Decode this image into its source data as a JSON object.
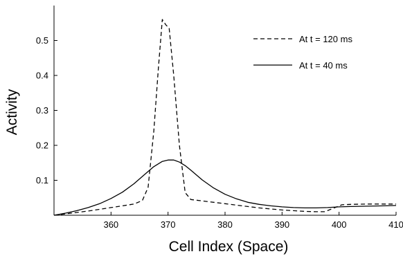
{
  "chart_data": {
    "type": "line",
    "title": "",
    "xlabel": "Cell Index (Space)",
    "ylabel": "Activity",
    "xlim": [
      350,
      410
    ],
    "ylim": [
      0,
      0.6
    ],
    "xticks": [
      360,
      370,
      380,
      390,
      400,
      410
    ],
    "yticks": [
      0.1,
      0.2,
      0.3,
      0.4,
      0.5
    ],
    "grid": false,
    "legend_position": "top-right",
    "series": [
      {
        "name": "At t = 120 ms",
        "style": "dashed",
        "color": "#000000",
        "points": [
          [
            350,
            0.0
          ],
          [
            352,
            0.004
          ],
          [
            354,
            0.008
          ],
          [
            356,
            0.012
          ],
          [
            358,
            0.017
          ],
          [
            360,
            0.022
          ],
          [
            362,
            0.027
          ],
          [
            364,
            0.032
          ],
          [
            365.5,
            0.042
          ],
          [
            366.5,
            0.08
          ],
          [
            367.5,
            0.24
          ],
          [
            368.3,
            0.42
          ],
          [
            369,
            0.56
          ],
          [
            369.6,
            0.545
          ],
          [
            370.2,
            0.535
          ],
          [
            371,
            0.4
          ],
          [
            372,
            0.2
          ],
          [
            373,
            0.065
          ],
          [
            374,
            0.045
          ],
          [
            376,
            0.041
          ],
          [
            378,
            0.037
          ],
          [
            380,
            0.033
          ],
          [
            382,
            0.029
          ],
          [
            384,
            0.025
          ],
          [
            386,
            0.021
          ],
          [
            388,
            0.018
          ],
          [
            390,
            0.015
          ],
          [
            392,
            0.013
          ],
          [
            394,
            0.011
          ],
          [
            396,
            0.01
          ],
          [
            397.5,
            0.01
          ],
          [
            399,
            0.02
          ],
          [
            400.5,
            0.03
          ],
          [
            402,
            0.031
          ],
          [
            405,
            0.032
          ],
          [
            408,
            0.032
          ],
          [
            410,
            0.032
          ]
        ]
      },
      {
        "name": "At t = 40 ms",
        "style": "solid",
        "color": "#000000",
        "points": [
          [
            350,
            0.0
          ],
          [
            352,
            0.006
          ],
          [
            354,
            0.013
          ],
          [
            356,
            0.022
          ],
          [
            358,
            0.033
          ],
          [
            360,
            0.048
          ],
          [
            362,
            0.066
          ],
          [
            364,
            0.09
          ],
          [
            366,
            0.118
          ],
          [
            367.5,
            0.139
          ],
          [
            369,
            0.154
          ],
          [
            370,
            0.158
          ],
          [
            371,
            0.158
          ],
          [
            372,
            0.152
          ],
          [
            373,
            0.142
          ],
          [
            374,
            0.129
          ],
          [
            376,
            0.101
          ],
          [
            378,
            0.078
          ],
          [
            380,
            0.06
          ],
          [
            382,
            0.047
          ],
          [
            384,
            0.037
          ],
          [
            386,
            0.031
          ],
          [
            388,
            0.027
          ],
          [
            390,
            0.024
          ],
          [
            392,
            0.022
          ],
          [
            394,
            0.021
          ],
          [
            396,
            0.021
          ],
          [
            398,
            0.022
          ],
          [
            400,
            0.024
          ],
          [
            402,
            0.025
          ],
          [
            405,
            0.026
          ],
          [
            408,
            0.027
          ],
          [
            410,
            0.028
          ]
        ]
      }
    ]
  }
}
